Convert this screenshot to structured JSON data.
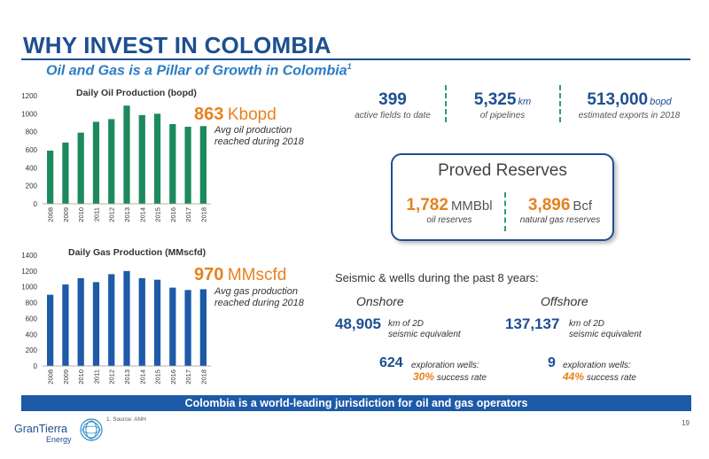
{
  "header": {
    "title": "WHY INVEST IN COLOMBIA",
    "subtitle": "Oil and Gas is a Pillar of Growth in Colombia",
    "subtitle_sup": "1"
  },
  "chart_data": [
    {
      "type": "bar",
      "title": "Daily Oil Production (bopd)",
      "categories": [
        "2008",
        "2009",
        "2010",
        "2011",
        "2012",
        "2013",
        "2014",
        "2015",
        "2016",
        "2017",
        "2018"
      ],
      "values": [
        590,
        680,
        790,
        910,
        940,
        1090,
        985,
        1000,
        885,
        855,
        863
      ],
      "yticks": [
        "0",
        "200",
        "400",
        "600",
        "800",
        "1000",
        "1200"
      ],
      "ylim": [
        0,
        1200
      ],
      "color": "#1d8a5e",
      "callout": {
        "value": "863",
        "unit": "Kbopd",
        "note_lines": [
          "Avg oil production",
          "reached during 2018"
        ]
      }
    },
    {
      "type": "bar",
      "title": "Daily Gas Production (MMscfd)",
      "categories": [
        "2008",
        "2009",
        "2010",
        "2011",
        "2012",
        "2013",
        "2014",
        "2015",
        "2016",
        "2017",
        "2018"
      ],
      "values": [
        900,
        1030,
        1110,
        1060,
        1160,
        1200,
        1110,
        1090,
        990,
        960,
        970
      ],
      "yticks": [
        "0",
        "200",
        "400",
        "600",
        "800",
        "1000",
        "1200",
        "1400"
      ],
      "ylim": [
        0,
        1400
      ],
      "color": "#1d5aa8",
      "callout": {
        "value": "970",
        "unit": "MMscfd",
        "note_lines": [
          "Avg gas production",
          "reached during 2018"
        ]
      }
    }
  ],
  "stats": [
    {
      "value": "399",
      "unit": "",
      "desc": "active fields to date"
    },
    {
      "value": "5,325",
      "unit": "km",
      "desc": "of pipelines"
    },
    {
      "value": "513,000",
      "unit": "bopd",
      "desc": "estimated exports in 2018"
    }
  ],
  "reserves": {
    "title": "Proved Reserves",
    "oil": {
      "value": "1,782",
      "unit": "MMBbl",
      "desc": "oil reserves"
    },
    "gas": {
      "value": "3,896",
      "unit": "Bcf",
      "desc": "natural gas reserves"
    }
  },
  "seismic": {
    "heading": "Seismic & wells during the past 8 years:",
    "onshore": {
      "label": "Onshore",
      "km": "48,905",
      "km_desc": [
        "km of 2D",
        "seismic equivalent"
      ],
      "wells": "624",
      "wells_desc": "exploration wells:",
      "success_pct": "30%",
      "success_desc": "success rate"
    },
    "offshore": {
      "label": "Offshore",
      "km": "137,137",
      "km_desc": [
        "km of 2D",
        "seismic equivalent"
      ],
      "wells": "9",
      "wells_desc": "exploration wells:",
      "success_pct": "44%",
      "success_desc": "success rate"
    }
  },
  "banner": "Colombia is a world-leading jurisdiction for oil and gas operators",
  "footer": {
    "logo_main": "GranTierra",
    "logo_sub": "Energy",
    "source_num": "1.",
    "source": "Source: ANH",
    "page": "19"
  },
  "colors": {
    "brand_blue": "#1d4f91",
    "accent_orange": "#e8811e",
    "oil_green": "#1d8a5e",
    "gas_blue": "#1d5aa8"
  }
}
